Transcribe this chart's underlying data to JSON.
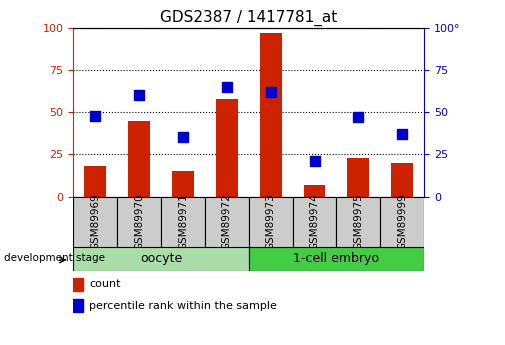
{
  "title": "GDS2387 / 1417781_at",
  "samples": [
    "GSM89969",
    "GSM89970",
    "GSM89971",
    "GSM89972",
    "GSM89973",
    "GSM89974",
    "GSM89975",
    "GSM89999"
  ],
  "counts": [
    18,
    45,
    15,
    58,
    97,
    7,
    23,
    20
  ],
  "percentiles": [
    48,
    60,
    35,
    65,
    62,
    21,
    47,
    37
  ],
  "bar_color": "#CC2200",
  "dot_color": "#0000CC",
  "ylim": [
    0,
    100
  ],
  "yticks": [
    0,
    25,
    50,
    75,
    100
  ],
  "left_axis_color": "#CC2200",
  "right_axis_color": "#0000CC",
  "dev_stage_label": "development stage",
  "legend_count_label": "count",
  "legend_pct_label": "percentile rank within the sample",
  "bar_width": 0.5,
  "dot_size": 45,
  "tick_label_fontsize": 7.5,
  "axis_tick_fontsize": 8,
  "title_fontsize": 11,
  "group_fontsize": 9,
  "oocyte_color": "#AADDAA",
  "embryo_color": "#44CC44",
  "sample_box_color": "#CCCCCC"
}
